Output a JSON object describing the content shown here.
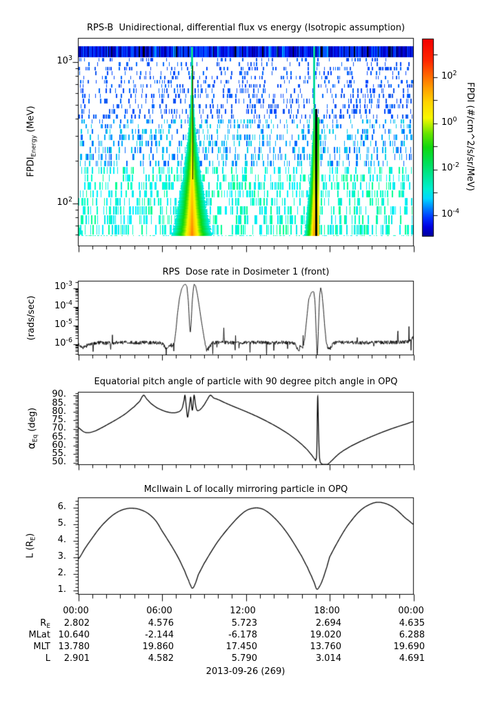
{
  "page": {
    "background": "#ffffff",
    "date_label": "2013-09-26 (269)"
  },
  "panels": {
    "flux": {
      "title": "RPS-B  Unidirectional, differential flux vs energy (Isotropic assumption)",
      "ylabel_main": "FPDI",
      "ylabel_sub": "Energy",
      "ylabel_unit": " (MeV)",
      "yticks": [
        {
          "base": "10",
          "exp": "3"
        },
        {
          "base": "10",
          "exp": "2"
        }
      ]
    },
    "colorbar": {
      "label": "FPDI (#/cm^2/s/sr/MeV)",
      "ticks": [
        {
          "base": "10",
          "exp": "2"
        },
        {
          "base": "10",
          "exp": "0"
        },
        {
          "base": "10",
          "exp": "-2"
        },
        {
          "base": "10",
          "exp": "-4"
        }
      ]
    },
    "dose": {
      "title": "RPS  Dose rate in Dosimeter 1 (front)",
      "ylabel": "(rads/sec)",
      "yticks": [
        {
          "base": "10",
          "exp": "-3"
        },
        {
          "base": "10",
          "exp": "-4"
        },
        {
          "base": "10",
          "exp": "-5"
        },
        {
          "base": "10",
          "exp": "-6"
        }
      ]
    },
    "pitch": {
      "title": "Equatorial pitch angle of particle with 90 degree pitch angle in OPQ",
      "ylabel_alpha": "α",
      "ylabel_sub": "Eq",
      "ylabel_unit": " (deg)",
      "yticks": [
        "90.",
        "85.",
        "80.",
        "75.",
        "70.",
        "65.",
        "60.",
        "55.",
        "50."
      ]
    },
    "lshell": {
      "title": "McIlwain L of locally mirroring particle in OPQ",
      "ylabel_pre": "L (R",
      "ylabel_sub": "E",
      "ylabel_post": ")",
      "yticks": [
        "6.",
        "5.",
        "4.",
        "3.",
        "2.",
        "1."
      ]
    }
  },
  "xaxis": {
    "time_labels": [
      "00:00",
      "06:00",
      "12:00",
      "18:00",
      "00:00"
    ]
  },
  "table": {
    "rows": [
      {
        "label_main": "R",
        "label_sub": "E",
        "values": [
          "2.802",
          "4.576",
          "5.723",
          "2.694",
          "4.635"
        ]
      },
      {
        "label_main": "MLat",
        "label_sub": "",
        "values": [
          "10.640",
          "-2.144",
          "-6.178",
          "19.020",
          "6.288"
        ]
      },
      {
        "label_main": "MLT",
        "label_sub": "",
        "values": [
          "13.780",
          "19.860",
          "17.450",
          "13.760",
          "19.690"
        ]
      },
      {
        "label_main": "L",
        "label_sub": "",
        "values": [
          "2.901",
          "4.582",
          "5.790",
          "3.014",
          "4.691"
        ]
      }
    ]
  },
  "chart_data": [
    {
      "id": "flux_spectrogram",
      "type": "heatmap",
      "title": "RPS-B  Unidirectional, differential flux vs energy (Isotropic assumption)",
      "x_hours": [
        0,
        24
      ],
      "y_scale": "log",
      "y_range_mev": [
        59,
        1450
      ],
      "colorbar": {
        "scale": "log",
        "range_flux": [
          1.4e-05,
          5000
        ],
        "tick_decades": [
          3,
          2,
          1,
          0,
          -1,
          -2,
          -3,
          -4
        ],
        "labeled_decades": [
          2,
          0,
          -2,
          -4
        ],
        "label": "FPDI (#/cm^2/s/sr/MeV)"
      },
      "top_band": {
        "colors": [
          "#000090",
          "#0000cc",
          "#0011ee",
          "#0033ff",
          "#0055ff"
        ],
        "bright": "#00aaff"
      },
      "speckle": {
        "colors_high": [
          "#0044ff",
          "#0066ff",
          "#1155ee"
        ],
        "colors_mid": [
          "#00aaff",
          "#0066ff",
          "#00d0e8"
        ],
        "colors_low": [
          "#00e8e8",
          "#00ffc8",
          "#00ff90",
          "#00f0ff"
        ],
        "density_top": 0.2,
        "density_bottom": 0.42
      },
      "flames": [
        {
          "center_hour": 8.13,
          "spread_start_frac": 0.06,
          "halfwidth_hours_at_bottom": 1.38,
          "width_pow": 1.8,
          "base_v0": 0.46,
          "base_add": 0.34,
          "dark_lane": true
        },
        {
          "center_hour": 16.87,
          "spread_start_frac": 0.24,
          "halfwidth_hours_at_bottom": 0.67,
          "width_pow": 1.6,
          "base_v0": 0.44,
          "base_add": 0.34,
          "dark_gap": true
        }
      ]
    },
    {
      "id": "dose_rate",
      "type": "line",
      "y_scale": "log",
      "ylim": [
        2.3e-07,
        0.0028
      ],
      "yticks": [
        0.001,
        0.0001,
        1e-05,
        1e-06
      ],
      "noise": {
        "apply_below": 2.2e-06,
        "log10_amp": 0.1
      },
      "keypoints": [
        [
          0,
          1e-06
        ],
        [
          0.15,
          8e-07
        ],
        [
          0.3,
          5.5e-07
        ],
        [
          0.5,
          7e-07
        ],
        [
          0.7,
          9e-07
        ],
        [
          0.9,
          1.05e-06
        ],
        [
          1.03,
          1.05e-06
        ],
        [
          1.06,
          3.2e-07
        ],
        [
          1.09,
          1.05e-06
        ],
        [
          1.5,
          1.15e-06
        ],
        [
          2.0,
          1.1e-06
        ],
        [
          2.28,
          1.1e-06
        ],
        [
          2.31,
          4e-07
        ],
        [
          2.34,
          1.1e-06
        ],
        [
          3,
          1.2e-06
        ],
        [
          4,
          1.15e-06
        ],
        [
          5,
          1.2e-06
        ],
        [
          5.5,
          1.15e-06
        ],
        [
          6.0,
          1.1e-06
        ],
        [
          6.2,
          7e-07
        ],
        [
          6.4,
          5e-07
        ],
        [
          6.55,
          9e-07
        ],
        [
          6.75,
          8e-07
        ],
        [
          6.9,
          1.5e-06
        ],
        [
          7.0,
          6e-06
        ],
        [
          7.1,
          4e-05
        ],
        [
          7.25,
          0.0003
        ],
        [
          7.4,
          0.0009
        ],
        [
          7.55,
          0.00145
        ],
        [
          7.68,
          0.0016
        ],
        [
          7.78,
          0.0012
        ],
        [
          7.88,
          0.0002
        ],
        [
          7.97,
          1e-05
        ],
        [
          8.02,
          4e-06
        ],
        [
          8.08,
          1.2e-05
        ],
        [
          8.16,
          0.0002
        ],
        [
          8.24,
          0.0009
        ],
        [
          8.3,
          0.00165
        ],
        [
          8.4,
          0.0013
        ],
        [
          8.52,
          0.0005
        ],
        [
          8.65,
          0.00012
        ],
        [
          8.8,
          2e-05
        ],
        [
          8.95,
          4e-06
        ],
        [
          9.1,
          9e-07
        ],
        [
          9.2,
          4.5e-07
        ],
        [
          9.35,
          6e-07
        ],
        [
          9.5,
          9e-07
        ],
        [
          9.65,
          1.15e-06
        ],
        [
          10,
          1.2e-06
        ],
        [
          10.38,
          1.2e-06
        ],
        [
          10.42,
          7.4e-06
        ],
        [
          10.46,
          1.2e-06
        ],
        [
          11,
          1.15e-06
        ],
        [
          11.2,
          1.1e-06
        ],
        [
          11.24,
          3.5e-07
        ],
        [
          11.28,
          1.1e-06
        ],
        [
          12,
          1.2e-06
        ],
        [
          13,
          1.2e-06
        ],
        [
          13.97,
          1.15e-06
        ],
        [
          14.0,
          5e-07
        ],
        [
          14.03,
          1.15e-06
        ],
        [
          14.5,
          1.2e-06
        ],
        [
          15,
          1.15e-06
        ],
        [
          15.4,
          1.2e-06
        ],
        [
          15.6,
          9e-07
        ],
        [
          15.75,
          3.5e-07
        ],
        [
          15.9,
          8e-07
        ],
        [
          16.1,
          7e-07
        ],
        [
          16.2,
          1.5e-06
        ],
        [
          16.35,
          2e-05
        ],
        [
          16.5,
          0.00025
        ],
        [
          16.7,
          0.0006
        ],
        [
          16.86,
          0.00065
        ],
        [
          16.95,
          0.0002
        ],
        [
          17.05,
          2e-06
        ],
        [
          17.12,
          1.5e-07
        ],
        [
          17.2,
          1e-05
        ],
        [
          17.28,
          0.0004
        ],
        [
          17.36,
          0.00105
        ],
        [
          17.45,
          0.0005
        ],
        [
          17.55,
          8e-05
        ],
        [
          17.65,
          8e-06
        ],
        [
          17.75,
          1.5e-06
        ],
        [
          17.85,
          6e-07
        ],
        [
          18.0,
          5e-07
        ],
        [
          18.15,
          8e-07
        ],
        [
          18.3,
          1.1e-06
        ],
        [
          18.5,
          1.25e-06
        ],
        [
          19,
          1.2e-06
        ],
        [
          20,
          1.15e-06
        ],
        [
          21,
          1.2e-06
        ],
        [
          22,
          1.2e-06
        ],
        [
          22.84,
          1.2e-06
        ],
        [
          22.88,
          7.4e-06
        ],
        [
          22.92,
          1.2e-06
        ],
        [
          23.2,
          1.3e-06
        ],
        [
          23.6,
          1.25e-06
        ],
        [
          23.95,
          2.5e-06
        ],
        [
          24,
          1.3e-06
        ]
      ]
    },
    {
      "id": "pitch_angle",
      "type": "line",
      "ylim_deg": [
        48.7,
        91.6
      ],
      "yticks": [
        90,
        85,
        80,
        75,
        70,
        65,
        60,
        55,
        50
      ],
      "keypoints": [
        [
          0,
          70.6
        ],
        [
          0.4,
          68.2
        ],
        [
          0.7,
          67.7
        ],
        [
          1.1,
          68.4
        ],
        [
          1.6,
          70.3
        ],
        [
          2.2,
          73.0
        ],
        [
          2.8,
          75.8
        ],
        [
          3.4,
          79.0
        ],
        [
          4.0,
          83.0
        ],
        [
          4.4,
          86.3
        ],
        [
          4.67,
          89.8
        ],
        [
          4.9,
          87.6
        ],
        [
          5.2,
          85.0
        ],
        [
          5.6,
          82.6
        ],
        [
          6.0,
          81.0
        ],
        [
          6.4,
          79.9
        ],
        [
          6.8,
          79.4
        ],
        [
          7.1,
          79.8
        ],
        [
          7.3,
          80.6
        ],
        [
          7.45,
          82.5
        ],
        [
          7.58,
          87.0
        ],
        [
          7.64,
          89.8
        ],
        [
          7.72,
          84.0
        ],
        [
          7.82,
          77.0
        ],
        [
          7.9,
          80.0
        ],
        [
          8.0,
          86.0
        ],
        [
          8.05,
          88.6
        ],
        [
          8.12,
          83.0
        ],
        [
          8.18,
          81.2
        ],
        [
          8.25,
          87.0
        ],
        [
          8.3,
          89.8
        ],
        [
          8.4,
          84.0
        ],
        [
          8.5,
          81.0
        ],
        [
          8.6,
          80.8
        ],
        [
          8.75,
          81.6
        ],
        [
          9.0,
          84.0
        ],
        [
          9.2,
          86.8
        ],
        [
          9.45,
          89.8
        ],
        [
          9.7,
          88.2
        ],
        [
          10,
          87.3
        ],
        [
          10.5,
          85.4
        ],
        [
          11,
          83.6
        ],
        [
          11.5,
          81.9
        ],
        [
          12,
          80.2
        ],
        [
          12.5,
          78.4
        ],
        [
          13,
          76.5
        ],
        [
          13.5,
          74.4
        ],
        [
          14,
          72.2
        ],
        [
          14.5,
          69.8
        ],
        [
          15,
          67.2
        ],
        [
          15.5,
          64.2
        ],
        [
          16,
          60.8
        ],
        [
          16.4,
          57.6
        ],
        [
          16.7,
          54.6
        ],
        [
          16.95,
          52.0
        ],
        [
          17.0,
          51.5
        ],
        [
          17.08,
          57.0
        ],
        [
          17.14,
          89.0
        ],
        [
          17.2,
          70.0
        ],
        [
          17.26,
          55.0
        ],
        [
          17.32,
          50.5
        ],
        [
          17.45,
          49.2
        ],
        [
          17.6,
          48.6
        ],
        [
          17.75,
          48.6
        ],
        [
          17.9,
          49.3
        ],
        [
          18.1,
          50.8
        ],
        [
          18.4,
          53.2
        ],
        [
          18.7,
          55.4
        ],
        [
          19,
          57.2
        ],
        [
          19.5,
          59.6
        ],
        [
          20,
          61.7
        ],
        [
          20.5,
          63.6
        ],
        [
          21,
          65.4
        ],
        [
          21.5,
          67.1
        ],
        [
          22,
          68.7
        ],
        [
          22.5,
          70.2
        ],
        [
          23,
          71.6
        ],
        [
          23.5,
          72.9
        ],
        [
          24,
          74.2
        ]
      ]
    },
    {
      "id": "mcilwain_l",
      "type": "line",
      "ylim": [
        0.75,
        6.58
      ],
      "yticks": [
        6,
        5,
        4,
        3,
        2,
        1
      ],
      "keypoints": [
        [
          0,
          2.9
        ],
        [
          0.5,
          3.55
        ],
        [
          1,
          4.15
        ],
        [
          1.5,
          4.72
        ],
        [
          2,
          5.18
        ],
        [
          2.5,
          5.55
        ],
        [
          3,
          5.8
        ],
        [
          3.5,
          5.93
        ],
        [
          3.9,
          5.95
        ],
        [
          4.3,
          5.9
        ],
        [
          4.8,
          5.74
        ],
        [
          5.2,
          5.5
        ],
        [
          5.6,
          5.14
        ],
        [
          6.0,
          4.58
        ],
        [
          6.4,
          4.05
        ],
        [
          6.8,
          3.5
        ],
        [
          7.2,
          2.9
        ],
        [
          7.6,
          2.2
        ],
        [
          7.9,
          1.6
        ],
        [
          8.05,
          1.28
        ],
        [
          8.17,
          1.12
        ],
        [
          8.35,
          1.35
        ],
        [
          8.6,
          1.95
        ],
        [
          9.0,
          2.6
        ],
        [
          9.5,
          3.3
        ],
        [
          10,
          3.95
        ],
        [
          10.5,
          4.5
        ],
        [
          11,
          5.0
        ],
        [
          11.5,
          5.45
        ],
        [
          12,
          5.79
        ],
        [
          12.4,
          5.93
        ],
        [
          12.8,
          5.97
        ],
        [
          13.2,
          5.9
        ],
        [
          13.6,
          5.7
        ],
        [
          14,
          5.4
        ],
        [
          14.5,
          4.95
        ],
        [
          15,
          4.4
        ],
        [
          15.5,
          3.75
        ],
        [
          16,
          3.05
        ],
        [
          16.4,
          2.4
        ],
        [
          16.7,
          1.85
        ],
        [
          16.9,
          1.45
        ],
        [
          17.07,
          1.07
        ],
        [
          17.25,
          1.2
        ],
        [
          17.5,
          1.65
        ],
        [
          17.8,
          2.4
        ],
        [
          18,
          3.01
        ],
        [
          18.4,
          3.65
        ],
        [
          18.8,
          4.25
        ],
        [
          19.2,
          4.8
        ],
        [
          19.6,
          5.25
        ],
        [
          20,
          5.65
        ],
        [
          20.4,
          5.95
        ],
        [
          20.8,
          6.15
        ],
        [
          21.2,
          6.28
        ],
        [
          21.5,
          6.31
        ],
        [
          21.8,
          6.28
        ],
        [
          22.2,
          6.17
        ],
        [
          22.6,
          5.98
        ],
        [
          23,
          5.7
        ],
        [
          23.4,
          5.38
        ],
        [
          23.7,
          5.18
        ],
        [
          24,
          4.98
        ]
      ]
    }
  ]
}
